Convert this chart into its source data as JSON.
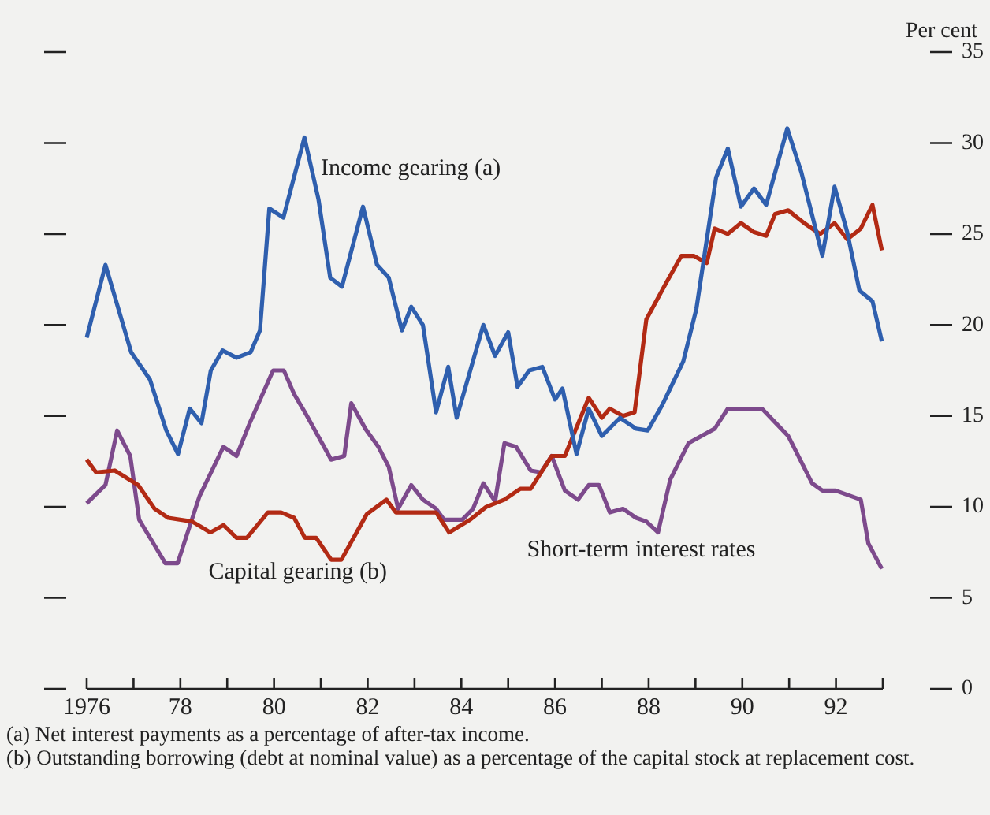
{
  "chart_data": {
    "type": "line",
    "ylabel": "Per cent",
    "marker": "none",
    "line_style": "solid",
    "xlim": [
      1976,
      1993
    ],
    "ylim": [
      0,
      35
    ],
    "xticks": [
      {
        "value": 1976,
        "label": "1976"
      },
      {
        "value": 1977,
        "label": null
      },
      {
        "value": 1978,
        "label": "78"
      },
      {
        "value": 1979,
        "label": null
      },
      {
        "value": 1980,
        "label": "80"
      },
      {
        "value": 1981,
        "label": null
      },
      {
        "value": 1982,
        "label": "82"
      },
      {
        "value": 1983,
        "label": null
      },
      {
        "value": 1984,
        "label": "84"
      },
      {
        "value": 1985,
        "label": null
      },
      {
        "value": 1986,
        "label": "86"
      },
      {
        "value": 1987,
        "label": null
      },
      {
        "value": 1988,
        "label": "88"
      },
      {
        "value": 1989,
        "label": null
      },
      {
        "value": 1990,
        "label": "90"
      },
      {
        "value": 1991,
        "label": null
      },
      {
        "value": 1992,
        "label": "92"
      },
      {
        "value": 1993,
        "label": null
      }
    ],
    "yticks": [
      0,
      5,
      10,
      15,
      20,
      25,
      30,
      35
    ],
    "series": [
      {
        "name": "Income gearing (a)",
        "color": "#2f5fae",
        "x": [
          1976.0,
          1976.4,
          1976.95,
          1977.35,
          1977.7,
          1977.95,
          1978.2,
          1978.45,
          1978.65,
          1978.9,
          1979.2,
          1979.5,
          1979.7,
          1979.9,
          1980.2,
          1980.65,
          1980.95,
          1981.2,
          1981.45,
          1981.9,
          1982.2,
          1982.45,
          1982.73,
          1982.93,
          1983.18,
          1983.46,
          1983.72,
          1983.9,
          1984.47,
          1984.72,
          1985.0,
          1985.2,
          1985.45,
          1985.73,
          1986.0,
          1986.16,
          1986.46,
          1986.72,
          1987.0,
          1987.39,
          1987.73,
          1987.98,
          1988.29,
          1988.74,
          1989.02,
          1989.44,
          1989.69,
          1989.97,
          1990.25,
          1990.51,
          1990.96,
          1991.26,
          1991.71,
          1991.97,
          1992.24,
          1992.5,
          1992.78,
          1992.98
        ],
        "values": [
          19.3,
          23.3,
          18.5,
          17.0,
          14.2,
          12.9,
          15.4,
          14.6,
          17.5,
          18.6,
          18.2,
          18.5,
          19.7,
          26.4,
          25.9,
          30.3,
          26.9,
          22.6,
          22.1,
          26.5,
          23.3,
          22.6,
          19.7,
          21.0,
          20.0,
          15.2,
          17.7,
          14.9,
          20.0,
          18.3,
          19.6,
          16.6,
          17.5,
          17.7,
          15.9,
          16.5,
          12.9,
          15.4,
          13.9,
          14.9,
          14.3,
          14.2,
          15.6,
          18.0,
          20.9,
          28.1,
          29.7,
          26.5,
          27.5,
          26.6,
          30.8,
          28.4,
          23.8,
          27.6,
          25.1,
          21.9,
          21.3,
          19.1
        ]
      },
      {
        "name": "Capital gearing (b)",
        "color": "#b22a14",
        "x": [
          1976.0,
          1976.2,
          1976.6,
          1977.1,
          1977.45,
          1977.74,
          1978.25,
          1978.64,
          1978.92,
          1979.2,
          1979.42,
          1979.87,
          1980.15,
          1980.43,
          1980.66,
          1980.9,
          1981.22,
          1981.44,
          1981.98,
          1982.4,
          1982.6,
          1983.46,
          1983.74,
          1984.19,
          1984.53,
          1984.92,
          1985.26,
          1985.48,
          1985.93,
          1986.21,
          1986.72,
          1987.0,
          1987.17,
          1987.45,
          1987.7,
          1987.95,
          1988.35,
          1988.7,
          1988.96,
          1989.24,
          1989.41,
          1989.69,
          1989.97,
          1990.25,
          1990.51,
          1990.7,
          1990.98,
          1991.32,
          1991.66,
          1991.97,
          1992.24,
          1992.53,
          1992.78,
          1992.98
        ],
        "values": [
          12.6,
          11.9,
          12.0,
          11.2,
          9.9,
          9.4,
          9.2,
          8.6,
          9.0,
          8.3,
          8.3,
          9.7,
          9.7,
          9.4,
          8.3,
          8.3,
          7.1,
          7.1,
          9.6,
          10.4,
          9.7,
          9.7,
          8.6,
          9.3,
          10.0,
          10.4,
          11.0,
          11.0,
          12.8,
          12.8,
          16.0,
          14.9,
          15.4,
          15.0,
          15.2,
          20.3,
          22.2,
          23.8,
          23.8,
          23.4,
          25.3,
          25.0,
          25.6,
          25.1,
          24.9,
          26.1,
          26.3,
          25.6,
          25.0,
          25.6,
          24.7,
          25.3,
          26.6,
          24.1
        ]
      },
      {
        "name": "Short-term interest rates",
        "color": "#7d4a8c",
        "x": [
          1976.0,
          1976.2,
          1976.4,
          1976.65,
          1976.93,
          1977.12,
          1977.4,
          1977.68,
          1977.94,
          1978.41,
          1978.92,
          1979.2,
          1979.48,
          1979.98,
          1980.21,
          1980.43,
          1980.66,
          1981.22,
          1981.5,
          1981.65,
          1981.95,
          1982.23,
          1982.45,
          1982.65,
          1982.93,
          1983.18,
          1983.46,
          1983.63,
          1984.02,
          1984.25,
          1984.47,
          1984.72,
          1984.92,
          1985.17,
          1985.48,
          1985.7,
          1985.93,
          1986.21,
          1986.49,
          1986.72,
          1986.94,
          1987.17,
          1987.45,
          1987.73,
          1987.95,
          1988.2,
          1988.46,
          1988.85,
          1989.41,
          1989.69,
          1990.42,
          1990.98,
          1991.49,
          1991.71,
          1991.99,
          1992.53,
          1992.69,
          1992.98
        ],
        "values": [
          10.2,
          10.7,
          11.2,
          14.2,
          12.8,
          9.3,
          8.1,
          6.9,
          6.9,
          10.6,
          13.3,
          12.8,
          14.6,
          17.5,
          17.5,
          16.2,
          15.2,
          12.6,
          12.8,
          15.7,
          14.3,
          13.3,
          12.2,
          9.9,
          11.2,
          10.4,
          9.9,
          9.3,
          9.3,
          9.9,
          11.3,
          10.3,
          13.5,
          13.3,
          12.0,
          11.9,
          12.8,
          10.9,
          10.4,
          11.2,
          11.2,
          9.7,
          9.9,
          9.4,
          9.2,
          8.6,
          11.5,
          13.5,
          14.3,
          15.4,
          15.4,
          13.9,
          11.3,
          10.9,
          10.9,
          10.4,
          8.0,
          6.6
        ]
      }
    ],
    "annotations": [
      "(a) Net interest payments as a percentage of after-tax income.",
      "(b) Outstanding borrowing (debt at nominal value) as a percentage of the capital stock at replacement cost."
    ]
  }
}
